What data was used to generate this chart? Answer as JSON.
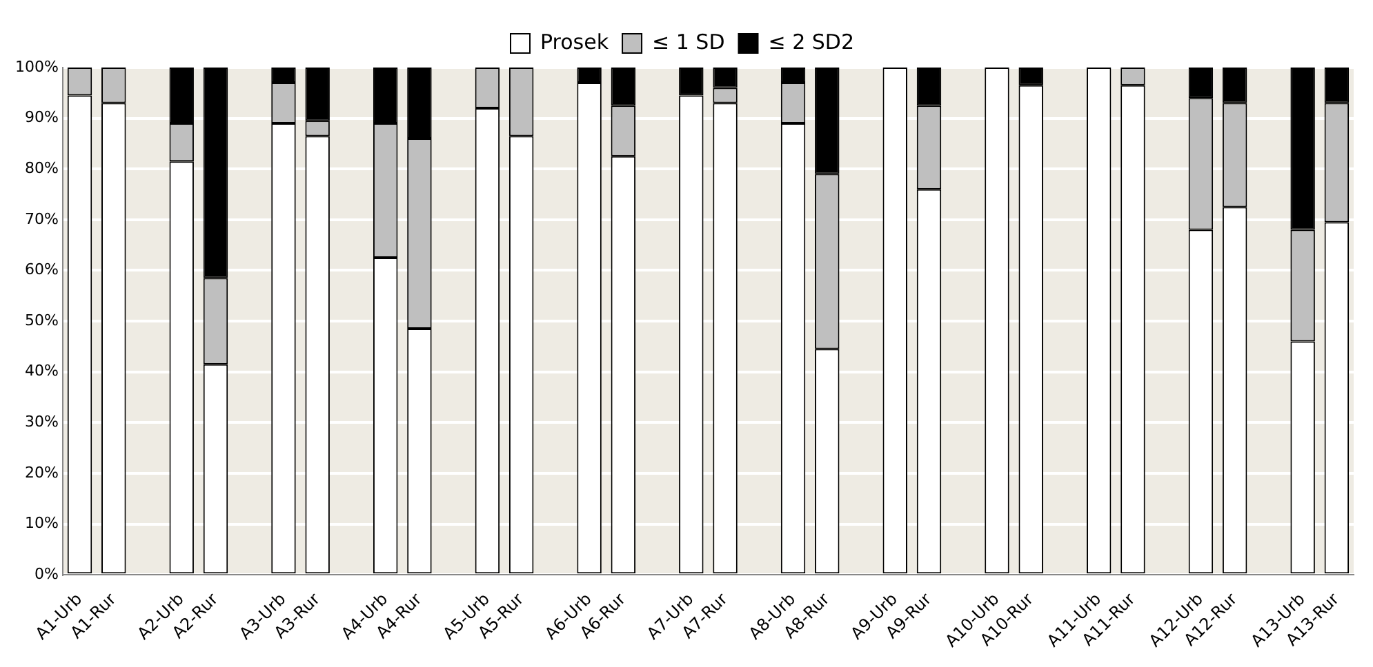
{
  "chart_data": {
    "type": "bar",
    "stacked": true,
    "legend": "top",
    "grid": "y",
    "categories": [
      "A1-Urb",
      "A1-Rur",
      null,
      "A2-Urb",
      "A2-Rur",
      null,
      "A3-Urb",
      "A3-Rur",
      null,
      "A4-Urb",
      "A4-Rur",
      null,
      "A5-Urb",
      "A5-Rur",
      null,
      "A6-Urb",
      "A6-Rur",
      null,
      "A7-Urb",
      "A7-Rur",
      null,
      "A8-Urb",
      "A8-Rur",
      null,
      "A9-Urb",
      "A9-Rur",
      null,
      "A10-Urb",
      "A10-Rur",
      null,
      "A11-Urb",
      "A11-Rur",
      null,
      "A12-Urb",
      "A12-Rur",
      null,
      "A13-Urb",
      "A13-Rur"
    ],
    "ylim": [
      0,
      100
    ],
    "yticks": [
      {
        "value": 0,
        "label": "0%"
      },
      {
        "value": 10,
        "label": "10%"
      },
      {
        "value": 20,
        "label": "20%"
      },
      {
        "value": 30,
        "label": "30%"
      },
      {
        "value": 40,
        "label": "40%"
      },
      {
        "value": 50,
        "label": "50%"
      },
      {
        "value": 60,
        "label": "60%"
      },
      {
        "value": 70,
        "label": "70%"
      },
      {
        "value": 80,
        "label": "80%"
      },
      {
        "value": 90,
        "label": "90%"
      },
      {
        "value": 100,
        "label": "100%"
      }
    ],
    "series": [
      {
        "name": "Prosek",
        "color": "#ffffff",
        "values": [
          94.5,
          93,
          null,
          81.5,
          41.5,
          null,
          89,
          86.5,
          null,
          62.5,
          48.5,
          null,
          92,
          86.5,
          null,
          97,
          82.5,
          null,
          94.5,
          93,
          null,
          89,
          44.5,
          null,
          100,
          76,
          null,
          100,
          96.5,
          null,
          100,
          96.5,
          null,
          68,
          72.5,
          null,
          46,
          69.5
        ]
      },
      {
        "name": "≤ 1 SD",
        "color": "#bfbfbf",
        "values": [
          5.5,
          7,
          null,
          7.5,
          17,
          null,
          8,
          3,
          null,
          26.5,
          37.5,
          null,
          8,
          13.5,
          null,
          0,
          10,
          null,
          0,
          3,
          null,
          8,
          34.5,
          null,
          0,
          16.5,
          null,
          0,
          0,
          null,
          0,
          3.5,
          null,
          26,
          20.5,
          null,
          22,
          23.5
        ]
      },
      {
        "name": "≤ 2 SD2",
        "color": "#000000",
        "values": [
          0,
          0,
          null,
          11,
          41.5,
          null,
          3,
          10.5,
          null,
          11,
          14,
          null,
          0,
          0,
          null,
          3,
          7.5,
          null,
          5.5,
          4,
          null,
          3,
          21,
          null,
          0,
          7.5,
          null,
          0,
          3.5,
          null,
          0,
          0,
          null,
          6,
          7,
          null,
          32,
          7
        ]
      }
    ]
  }
}
